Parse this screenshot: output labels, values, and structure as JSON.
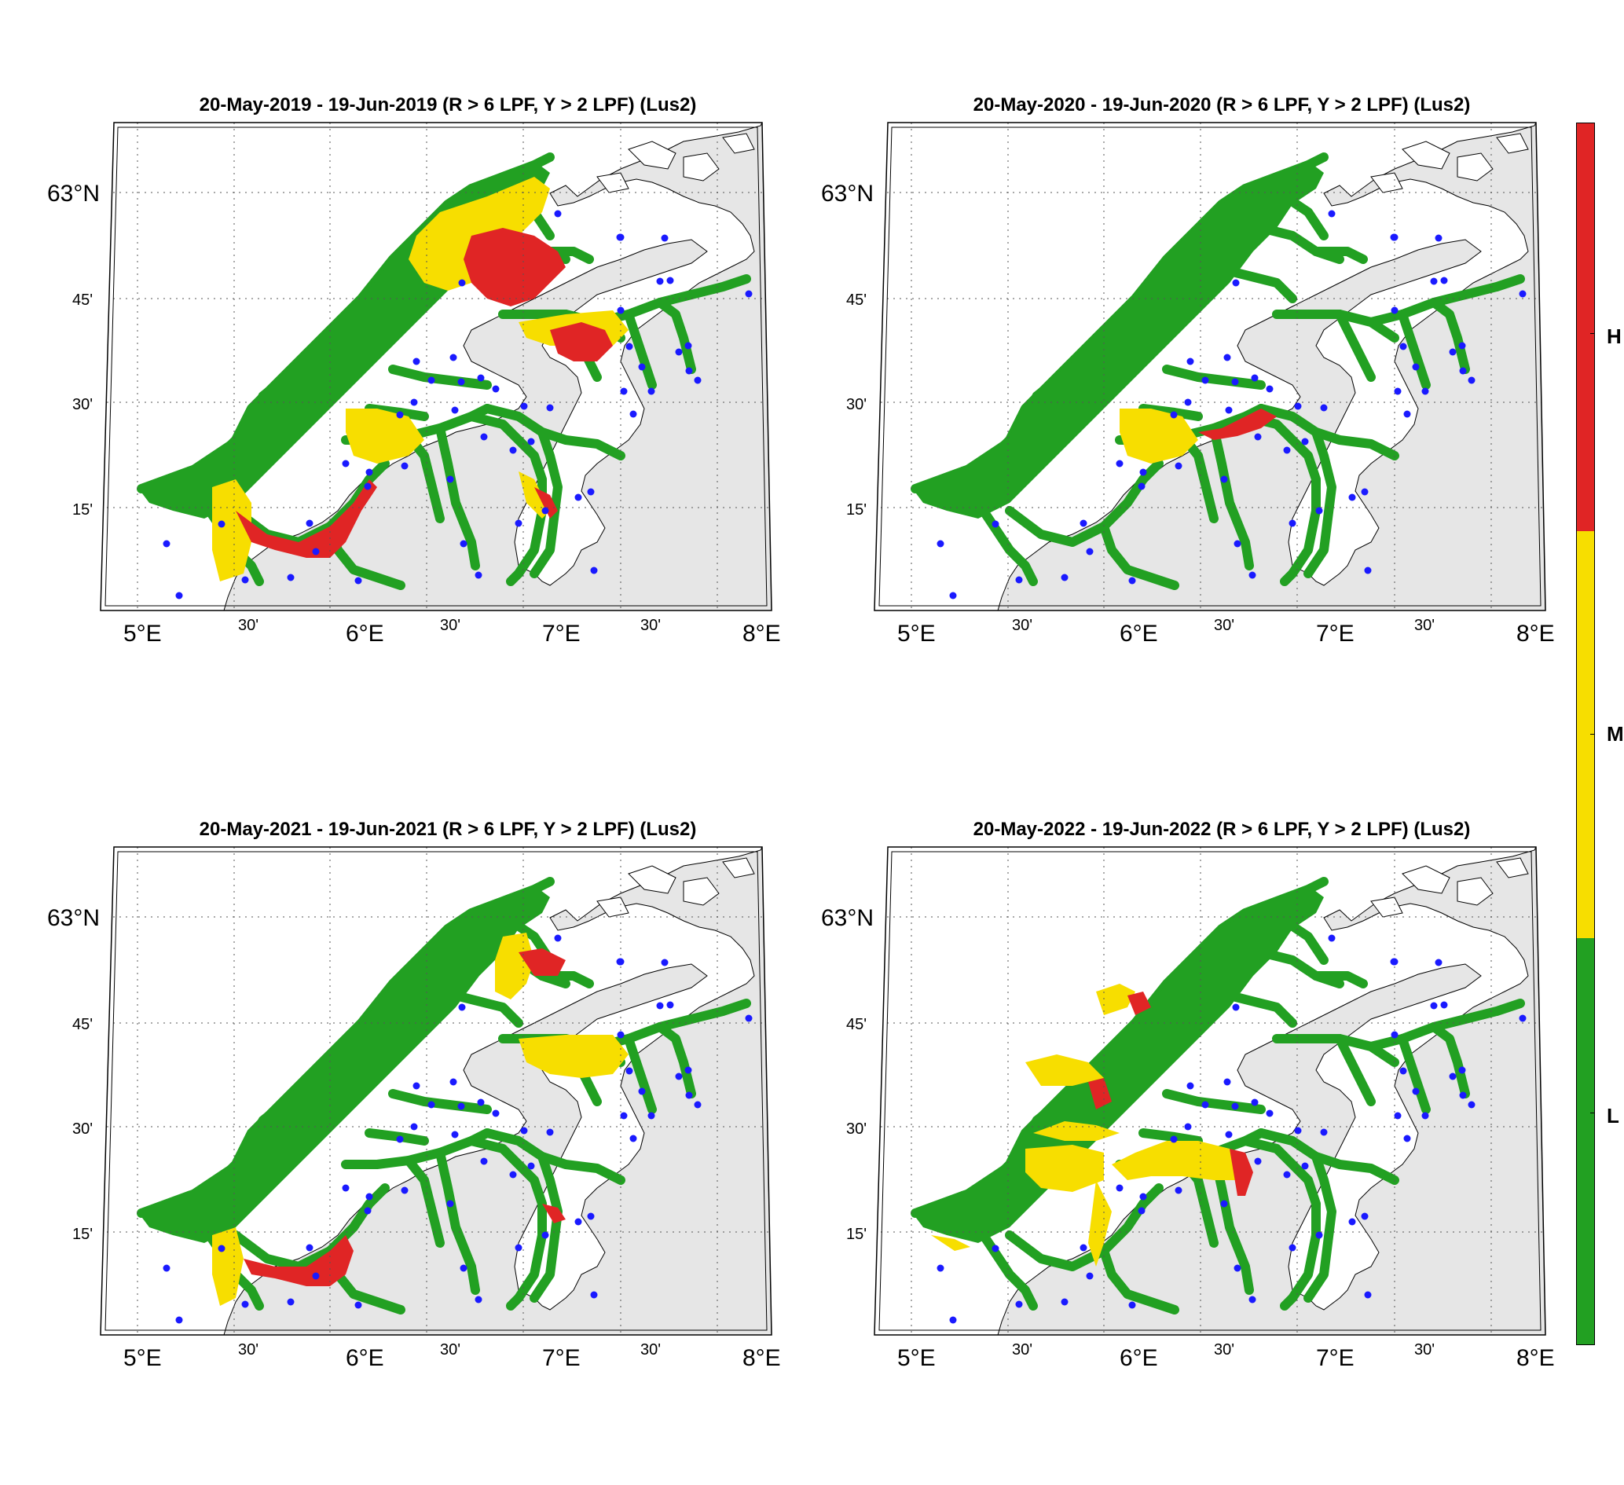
{
  "figure": {
    "panels": [
      {
        "id": "2019",
        "title": "20-May-2019  - 19-Jun-2019  (R > 6 LPF, Y > 2 LPF) (Lus2)",
        "lat_labels": [
          "63°N",
          "45'",
          "30'",
          "15'"
        ],
        "lon_labels": [
          "5°E",
          "30'",
          "6°E",
          "30'",
          "7°E",
          "30'",
          "8°E"
        ]
      },
      {
        "id": "2020",
        "title": "20-May-2020  - 19-Jun-2020  (R > 6 LPF, Y > 2 LPF) (Lus2)",
        "lat_labels": [
          "63°N",
          "45'",
          "30'",
          "15'"
        ],
        "lon_labels": [
          "5°E",
          "30'",
          "6°E",
          "30'",
          "7°E",
          "30'",
          "8°E"
        ]
      },
      {
        "id": "2021",
        "title": "20-May-2021  - 19-Jun-2021  (R > 6 LPF, Y > 2 LPF) (Lus2)",
        "lat_labels": [
          "63°N",
          "45'",
          "30'",
          "15'"
        ],
        "lon_labels": [
          "5°E",
          "30'",
          "6°E",
          "30'",
          "7°E",
          "30'",
          "8°E"
        ]
      },
      {
        "id": "2022",
        "title": "20-May-2022  - 19-Jun-2022  (R > 6 LPF, Y > 2 LPF) (Lus2)",
        "lat_labels": [
          "63°N",
          "45'",
          "30'",
          "15'"
        ],
        "lon_labels": [
          "5°E",
          "30'",
          "6°E",
          "30'",
          "7°E",
          "30'",
          "8°E"
        ]
      }
    ],
    "colorbar": {
      "labels": [
        "H",
        "M",
        "L"
      ],
      "colors": {
        "H": "#e02525",
        "M": "#f7de00",
        "L": "#22a022"
      }
    },
    "colors": {
      "land": "#e6e6e6",
      "sea": "#ffffff",
      "coast": "#000000",
      "station": "#1a1aff",
      "grid": "#555555"
    }
  }
}
